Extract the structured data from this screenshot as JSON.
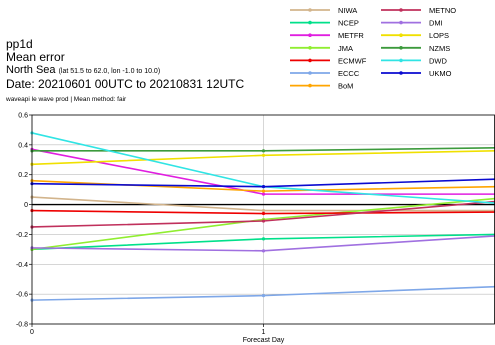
{
  "header": {
    "line1": "pp1d",
    "line2": "Mean error",
    "region": "North Sea",
    "region_bounds": "(lat  51.5 to 62.0, lon   -1.0 to 10.0)",
    "date_range": "Date: 20210601 00UTC to 20210831 12UTC",
    "note": "waveapi le wave prod | Mean method: fair"
  },
  "chart_data": {
    "type": "line",
    "title": "",
    "xlabel": "Forecast Day",
    "ylabel": "",
    "x": [
      0,
      1,
      2
    ],
    "xticks": [
      "0",
      "1"
    ],
    "xlim": [
      0,
      2
    ],
    "ylim": [
      -0.8,
      0.6
    ],
    "yticks": [
      "0.6",
      "0.4",
      "0.2",
      "0",
      "-0.2",
      "-0.4",
      "-0.6",
      "-0.8"
    ],
    "ytick_values": [
      0.6,
      0.4,
      0.2,
      0,
      -0.2,
      -0.4,
      -0.6,
      -0.8
    ],
    "grid": true,
    "legend": "top-right, two columns",
    "series": [
      {
        "name": "NIWA",
        "color": "#d2b48c",
        "values": [
          0.05,
          -0.04,
          -0.04
        ]
      },
      {
        "name": "NCEP",
        "color": "#00e08a",
        "values": [
          -0.3,
          -0.23,
          -0.2
        ]
      },
      {
        "name": "METFR",
        "color": "#e01ee0",
        "values": [
          0.37,
          0.07,
          0.07
        ]
      },
      {
        "name": "JMA",
        "color": "#90ee30",
        "values": [
          -0.3,
          -0.1,
          0.04
        ]
      },
      {
        "name": "ECMWF",
        "color": "#ee0000",
        "values": [
          -0.04,
          -0.06,
          -0.05
        ]
      },
      {
        "name": "ECCC",
        "color": "#7ea7e8",
        "values": [
          -0.64,
          -0.61,
          -0.55
        ]
      },
      {
        "name": "BoM",
        "color": "#ffa500",
        "values": [
          0.16,
          0.09,
          0.12
        ]
      },
      {
        "name": "METNO",
        "color": "#c0305c",
        "values": [
          -0.15,
          -0.11,
          0.02
        ]
      },
      {
        "name": "DMI",
        "color": "#a070e0",
        "values": [
          -0.29,
          -0.31,
          -0.21
        ]
      },
      {
        "name": "LOPS",
        "color": "#f0e000",
        "values": [
          0.27,
          0.33,
          0.36
        ]
      },
      {
        "name": "NZMS",
        "color": "#3c9a3c",
        "values": [
          0.36,
          0.36,
          0.38
        ]
      },
      {
        "name": "DWD",
        "color": "#30e4e4",
        "values": [
          0.48,
          0.12,
          0.01
        ]
      },
      {
        "name": "UKMO",
        "color": "#0a0ad0",
        "values": [
          0.14,
          0.12,
          0.17
        ]
      }
    ]
  }
}
